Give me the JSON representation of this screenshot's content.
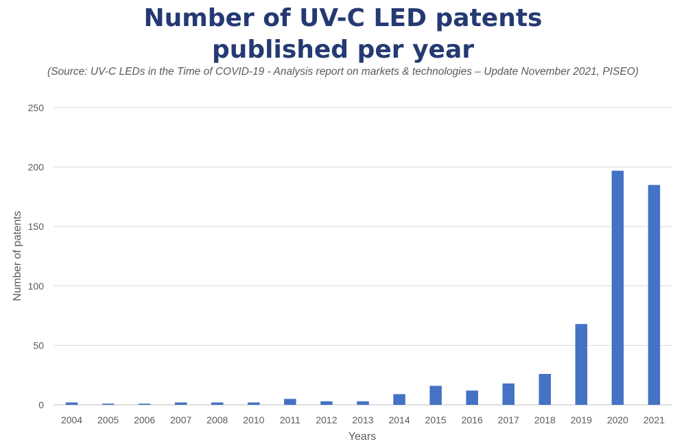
{
  "title_line1": "Number of UV-C LED patents",
  "title_line2": "published per year",
  "subtitle": "(Source: UV-C LEDs in the Time of COVID-19 - Analysis report on markets & technologies – Update November 2021, PISEO)",
  "colors": {
    "bar": "#4472c4",
    "title": "#253a73",
    "grid": "#d9d9d9",
    "text": "#595959"
  },
  "chart_data": {
    "type": "bar",
    "title": "Number of UV-C LED patents published per year",
    "xlabel": "Years",
    "ylabel": "Number of patents",
    "ylim": [
      0,
      250
    ],
    "yticks": [
      0,
      50,
      100,
      150,
      200,
      250
    ],
    "grid": true,
    "categories": [
      "2004",
      "2005",
      "2006",
      "2007",
      "2008",
      "2010",
      "2011",
      "2012",
      "2013",
      "2014",
      "2015",
      "2016",
      "2017",
      "2018",
      "2019",
      "2020",
      "2021"
    ],
    "values": [
      2,
      1,
      1,
      2,
      2,
      2,
      5,
      3,
      3,
      9,
      16,
      12,
      18,
      26,
      68,
      197,
      185
    ]
  }
}
